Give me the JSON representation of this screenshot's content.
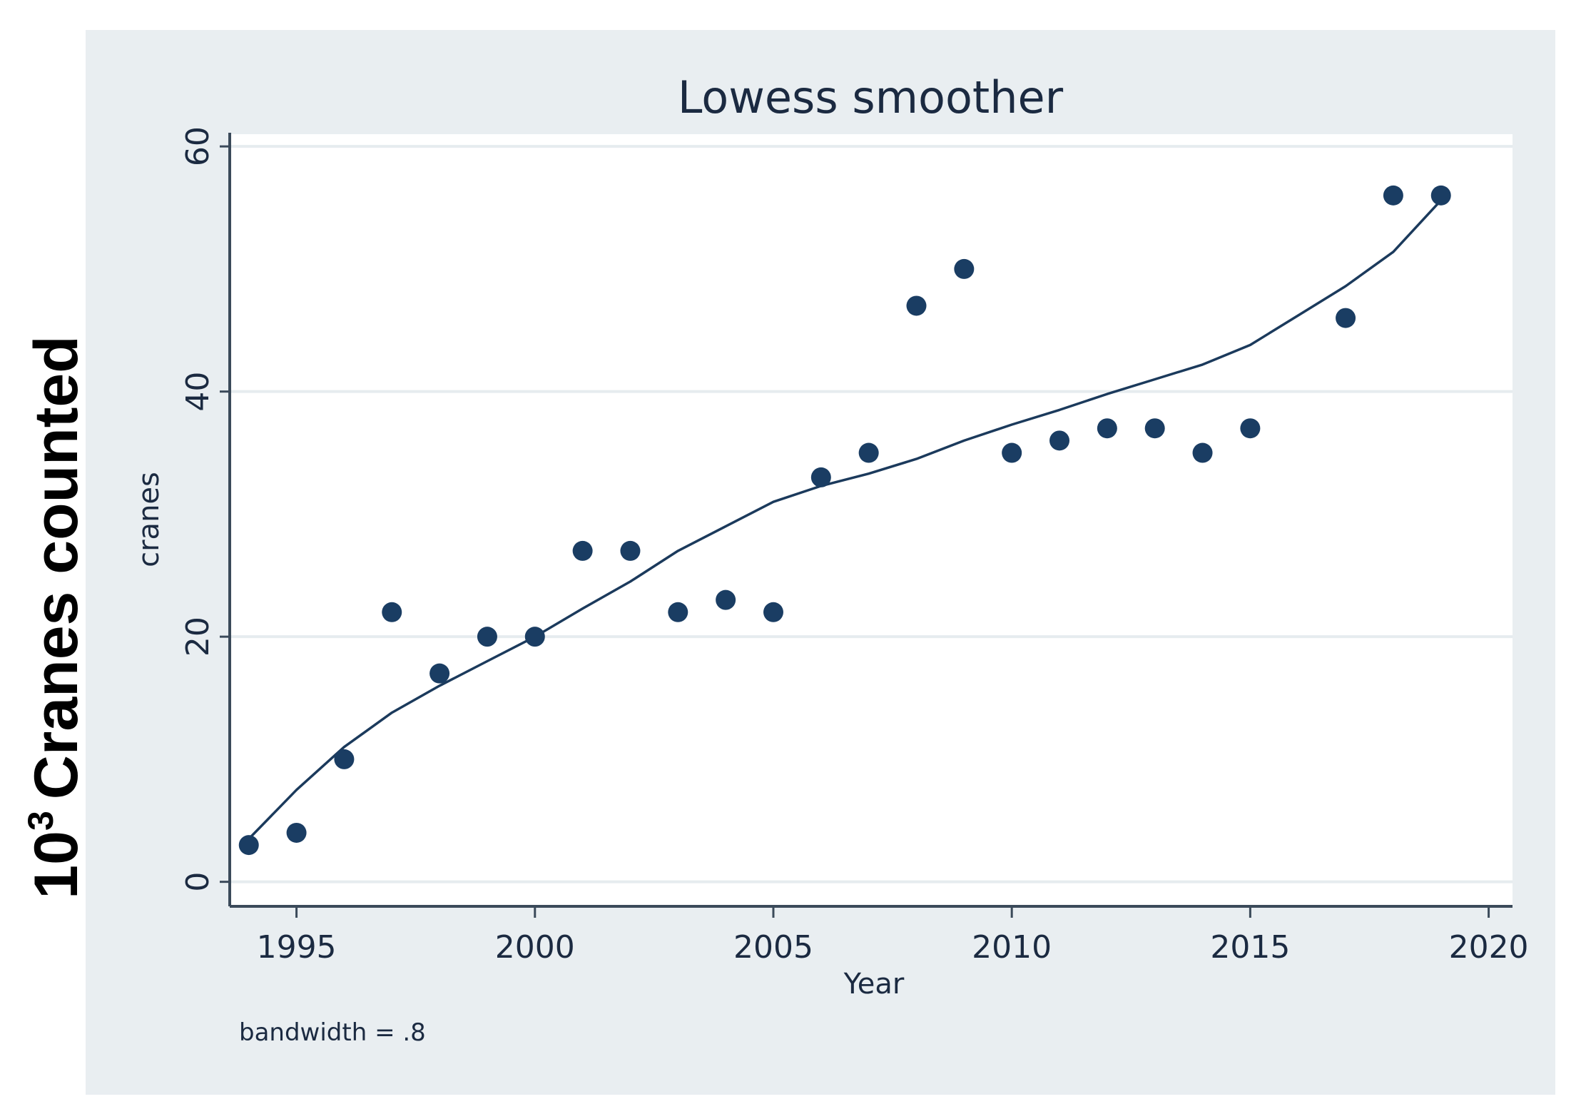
{
  "chart_data": {
    "type": "scatter",
    "title": "Lowess smoother",
    "xlabel": "Year",
    "ylabel": "cranes",
    "outer_ylabel": {
      "base": "10",
      "sup": "3",
      "rest": "Cranes counted"
    },
    "note": "bandwidth = .8",
    "xlim": [
      1993.6,
      2020.5
    ],
    "ylim": [
      -2,
      61
    ],
    "xticks": [
      1995,
      2000,
      2005,
      2010,
      2015,
      2020
    ],
    "yticks": [
      0,
      20,
      40,
      60
    ],
    "grid": true,
    "colors": {
      "outer_background": "#e9eef1",
      "plot_background": "#ffffff",
      "gridline": "#e6ecef",
      "marker": "#1a3d63",
      "line": "#1b3a5c",
      "axis": "#3b4a5a"
    },
    "series": [
      {
        "name": "cranes",
        "kind": "points",
        "x": [
          1994,
          1995,
          1996,
          1997,
          1998,
          1999,
          2000,
          2001,
          2002,
          2003,
          2004,
          2005,
          2006,
          2007,
          2008,
          2009,
          2010,
          2011,
          2012,
          2013,
          2014,
          2015,
          2017,
          2018,
          2019
        ],
        "y": [
          3,
          4,
          10,
          22,
          17,
          20,
          20,
          27,
          27,
          22,
          23,
          22,
          33,
          35,
          47,
          50,
          35,
          36,
          37,
          37,
          35,
          37,
          46,
          56,
          56
        ]
      },
      {
        "name": "lowess smoother",
        "kind": "line",
        "x": [
          1994,
          1995,
          1996,
          1997,
          1998,
          1999,
          2000,
          2001,
          2002,
          2003,
          2004,
          2005,
          2006,
          2007,
          2008,
          2009,
          2010,
          2011,
          2012,
          2013,
          2014,
          2015,
          2016,
          2017,
          2018,
          2019
        ],
        "y": [
          3.5,
          7.5,
          11,
          13.8,
          16,
          18,
          20,
          22.3,
          24.5,
          27,
          29,
          31,
          32.3,
          33.3,
          34.5,
          36,
          37.3,
          38.5,
          39.8,
          41,
          42.2,
          43.8,
          46.2,
          48.6,
          51.4,
          55.6
        ]
      }
    ]
  }
}
